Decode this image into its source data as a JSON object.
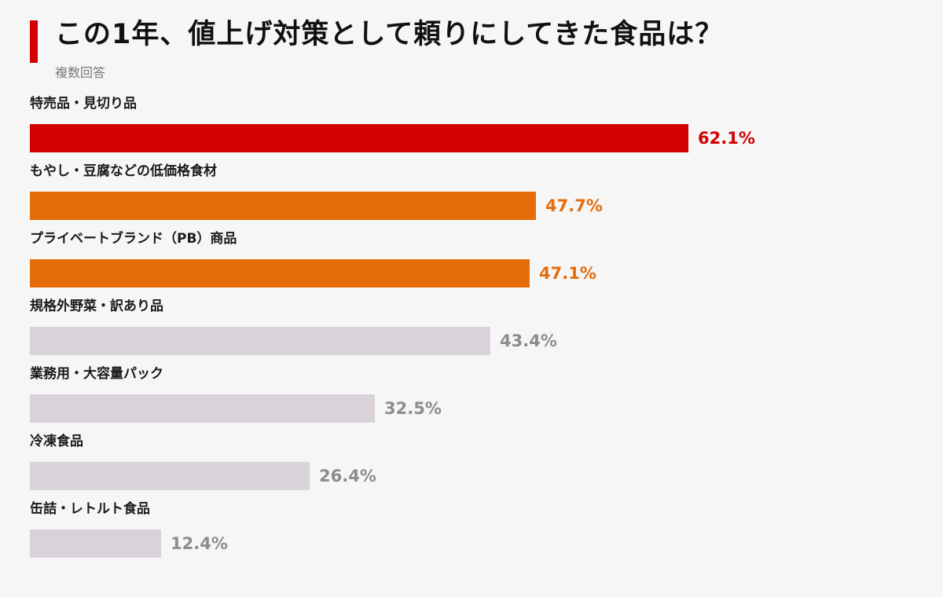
{
  "chart_data": {
    "type": "bar",
    "title": "この1年、値上げ対策として頼りにしてきた食品は？",
    "subtitle": "複数回答",
    "unit": "%",
    "categories": [
      "特売品・見切り品",
      "もやし・豆腐などの低価格食材",
      "プライベートブランド（PB）商品",
      "規格外野菜・訳あり品",
      "業務用・大容量パック",
      "冷凍食品",
      "缶詰・レトルト食品"
    ],
    "values": [
      62.1,
      47.7,
      47.1,
      43.4,
      32.5,
      26.4,
      12.4
    ],
    "value_labels": [
      "62.1%",
      "47.7%",
      "47.1%",
      "43.4%",
      "32.5%",
      "26.4%",
      "12.4%"
    ],
    "xlim": [
      0,
      100
    ],
    "grid": false,
    "legend": "none",
    "colors": {
      "top": "#d20000",
      "highlight": "#e46d0a",
      "other": "#d9d3d9",
      "other_label": "#8c8c8c"
    },
    "bar_color_keys": [
      "top",
      "highlight",
      "highlight",
      "other",
      "other",
      "other",
      "other"
    ]
  }
}
